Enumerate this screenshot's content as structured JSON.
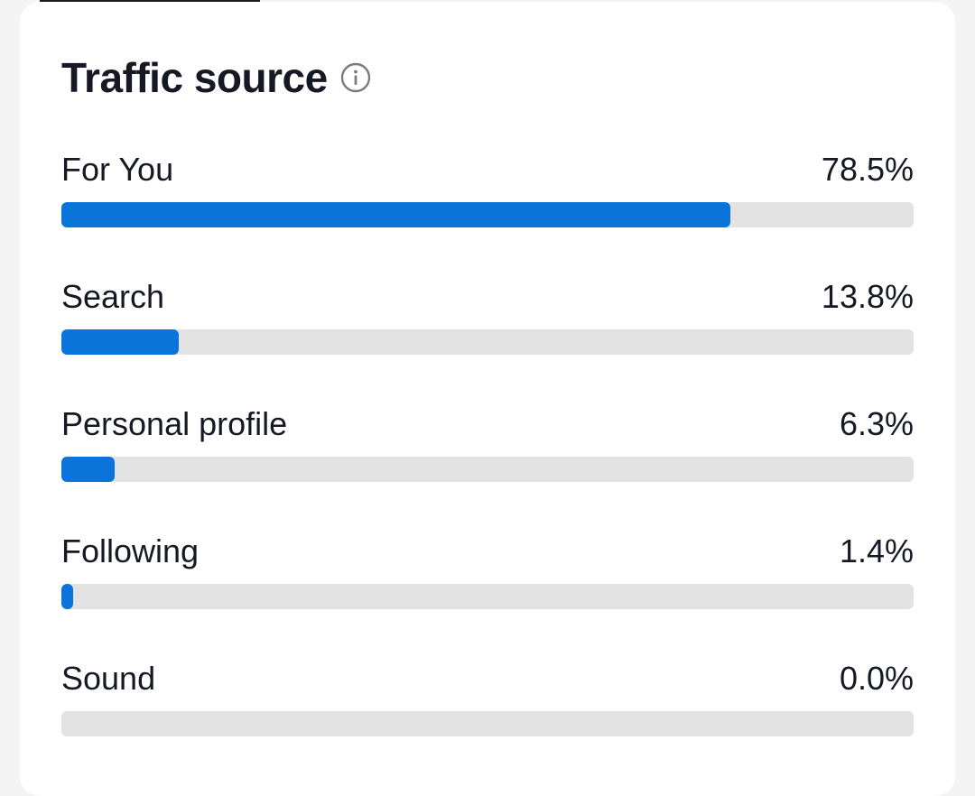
{
  "header": {
    "title": "Traffic source",
    "info_icon": "info-icon"
  },
  "colors": {
    "bar_fill": "#0a74da",
    "bar_track": "#e3e3e4",
    "text": "#161823"
  },
  "sources": [
    {
      "label": "For You",
      "value_text": "78.5%",
      "percent": 78.5
    },
    {
      "label": "Search",
      "value_text": "13.8%",
      "percent": 13.8
    },
    {
      "label": "Personal profile",
      "value_text": "6.3%",
      "percent": 6.3
    },
    {
      "label": "Following",
      "value_text": "1.4%",
      "percent": 1.4
    },
    {
      "label": "Sound",
      "value_text": "0.0%",
      "percent": 0.0
    }
  ]
}
